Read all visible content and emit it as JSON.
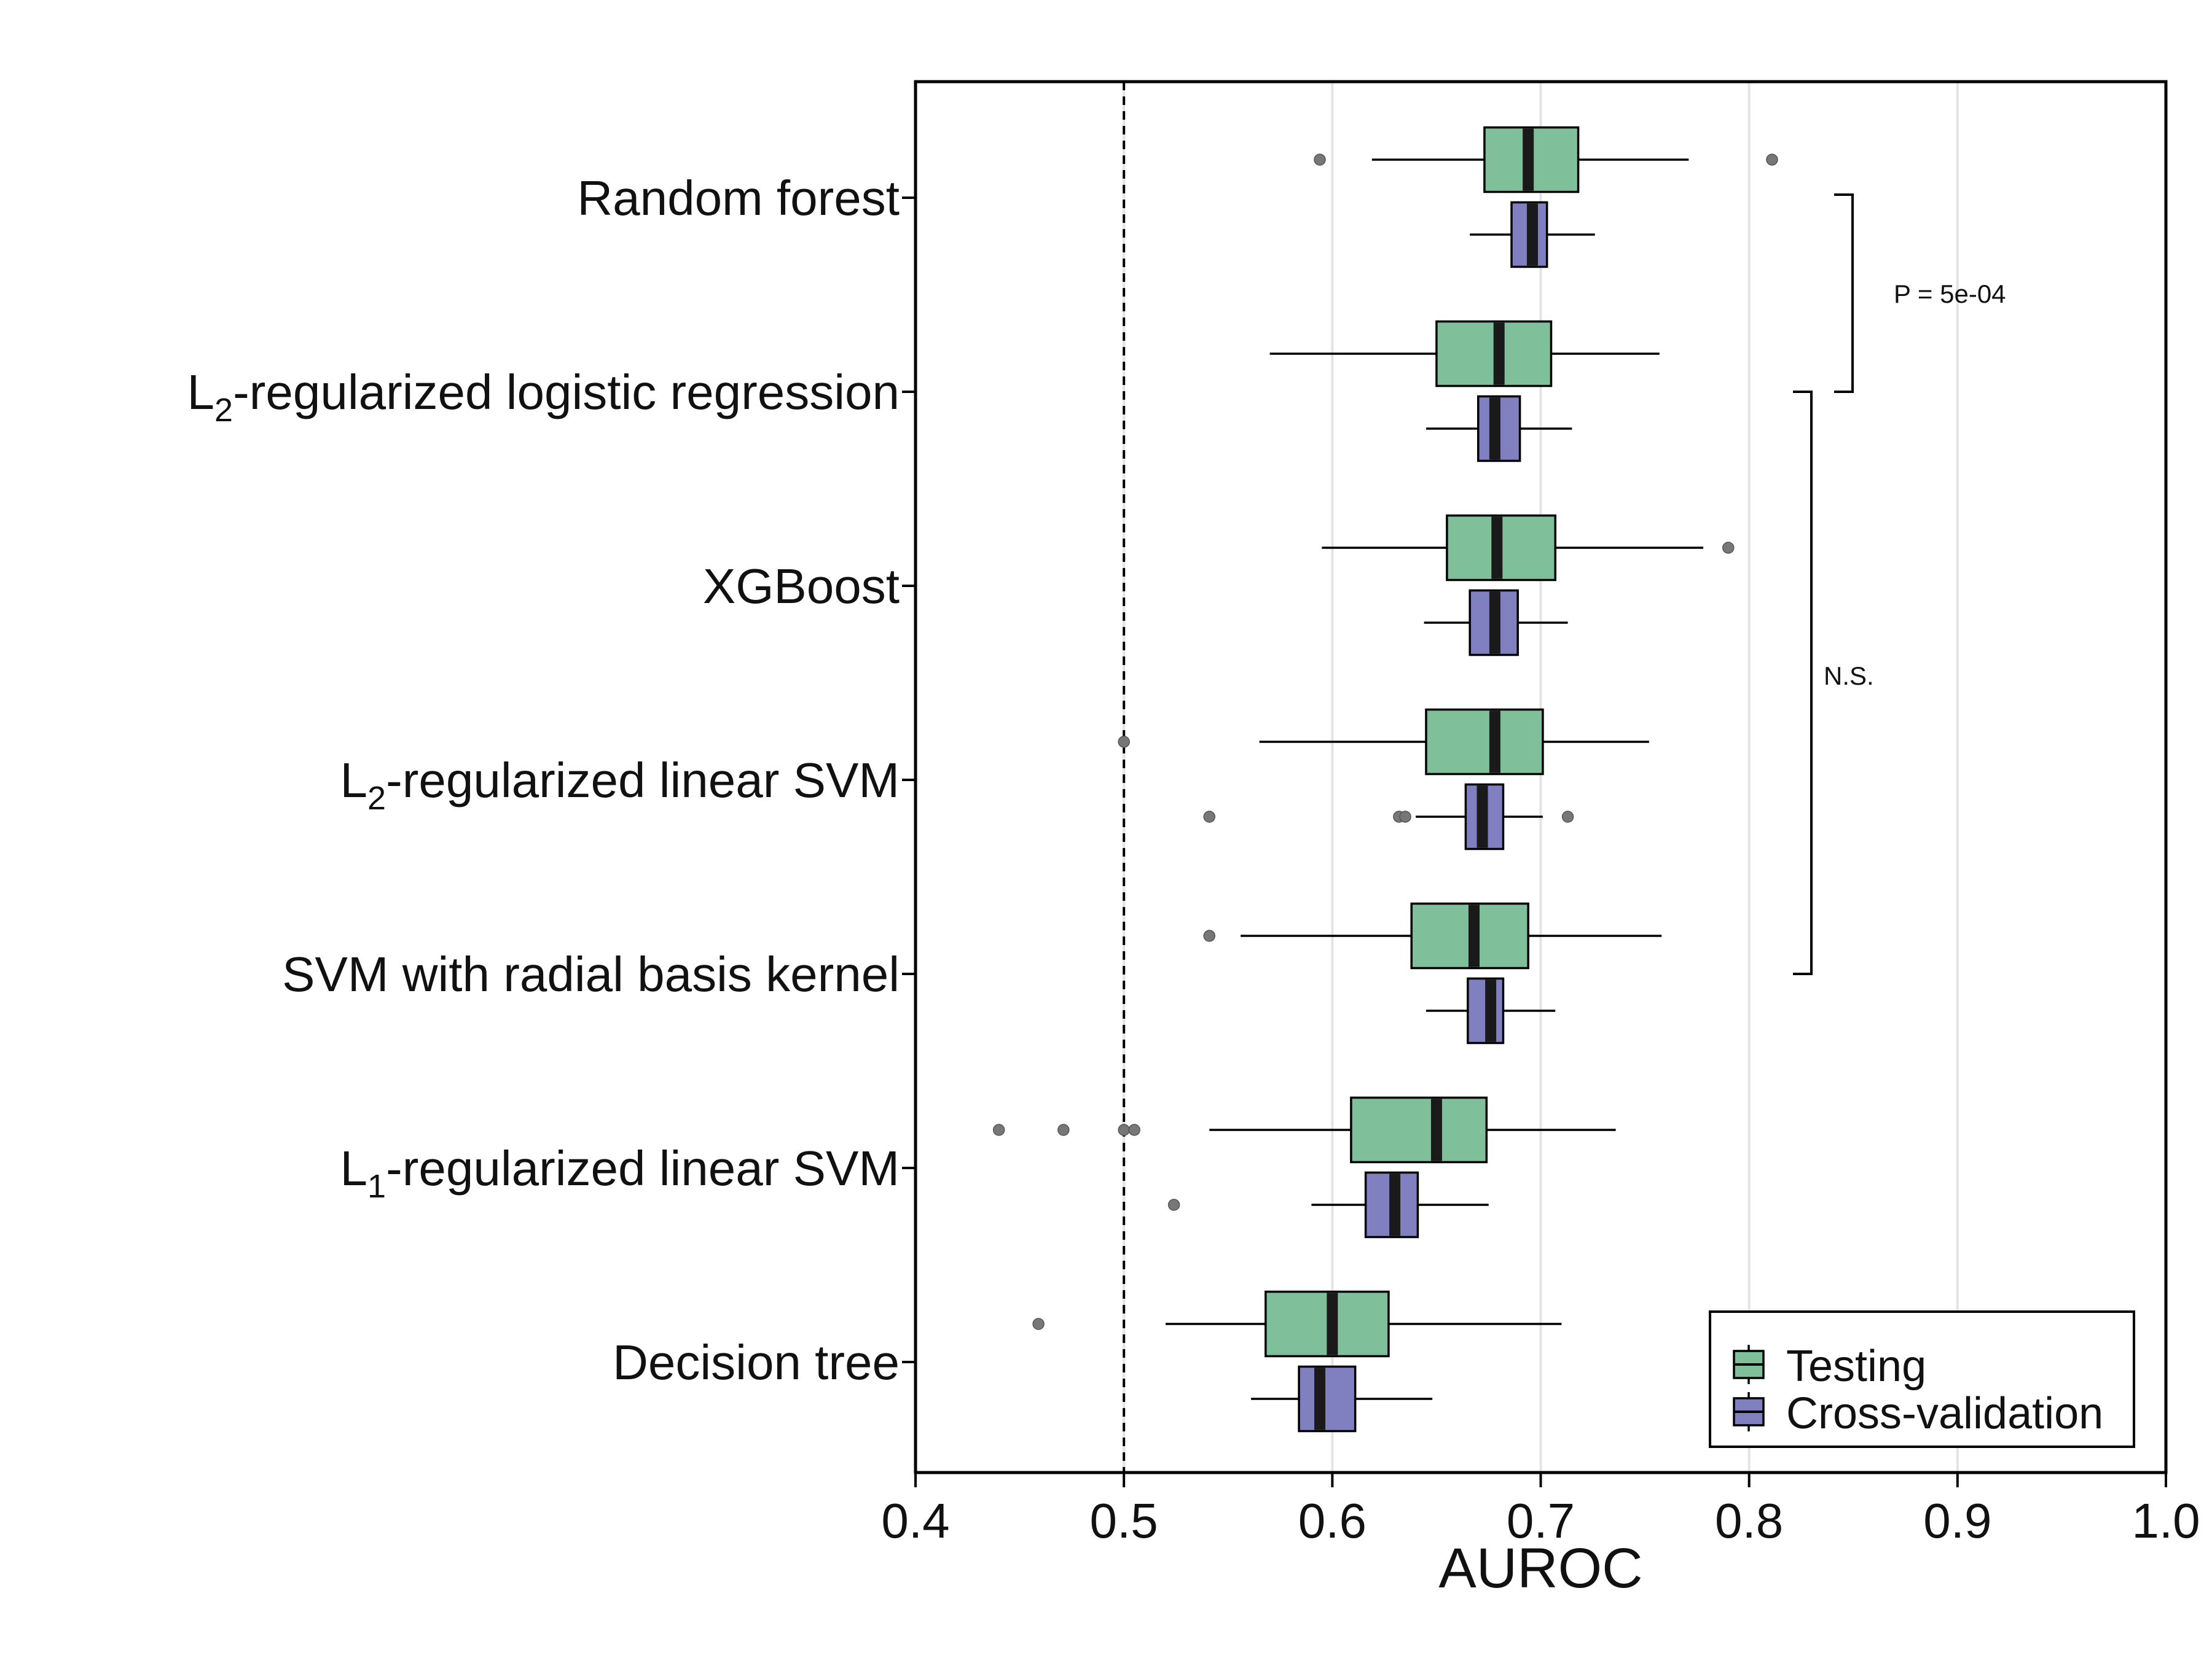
{
  "chart_data": {
    "type": "box",
    "xlabel": "AUROC",
    "xlim": [
      0.4,
      1.0
    ],
    "xticks": [
      "0.4",
      "0.5",
      "0.6",
      "0.7",
      "0.8",
      "0.9",
      "1.0"
    ],
    "grid": "vertical",
    "reference_line": {
      "x": 0.5,
      "style": "dashed"
    },
    "legend": {
      "placement": "bottom-right",
      "entries": [
        {
          "name": "Testing",
          "color": "#7fbf99"
        },
        {
          "name": "Cross-validation",
          "color": "#8080c0"
        }
      ]
    },
    "models": [
      {
        "label": "Random forest",
        "label_parts": [
          [
            "Random forest",
            ""
          ]
        ],
        "testing": {
          "whisker_low": 0.619,
          "q1": 0.673,
          "median": 0.694,
          "q3": 0.718,
          "whisker_high": 0.771,
          "outliers": [
            0.594,
            0.811
          ]
        },
        "cv": {
          "whisker_low": 0.666,
          "q1": 0.686,
          "median": 0.696,
          "q3": 0.703,
          "whisker_high": 0.726,
          "outliers": []
        }
      },
      {
        "label": "L2-regularized logistic regression",
        "label_parts": [
          [
            "L",
            ""
          ],
          [
            "2",
            "sub"
          ],
          [
            "-regularized logistic regression",
            ""
          ]
        ],
        "testing": {
          "whisker_low": 0.57,
          "q1": 0.65,
          "median": 0.68,
          "q3": 0.705,
          "whisker_high": 0.757,
          "outliers": []
        },
        "cv": {
          "whisker_low": 0.645,
          "q1": 0.67,
          "median": 0.678,
          "q3": 0.69,
          "whisker_high": 0.715,
          "outliers": []
        }
      },
      {
        "label": "XGBoost",
        "label_parts": [
          [
            "XGBoost",
            ""
          ]
        ],
        "testing": {
          "whisker_low": 0.595,
          "q1": 0.655,
          "median": 0.679,
          "q3": 0.707,
          "whisker_high": 0.778,
          "outliers": [
            0.79
          ]
        },
        "cv": {
          "whisker_low": 0.644,
          "q1": 0.666,
          "median": 0.678,
          "q3": 0.689,
          "whisker_high": 0.713,
          "outliers": []
        }
      },
      {
        "label": "L2-regularized linear SVM",
        "label_parts": [
          [
            "L",
            ""
          ],
          [
            "2",
            "sub"
          ],
          [
            "-regularized linear SVM",
            ""
          ]
        ],
        "testing": {
          "whisker_low": 0.565,
          "q1": 0.645,
          "median": 0.678,
          "q3": 0.701,
          "whisker_high": 0.752,
          "outliers": [
            0.5
          ]
        },
        "cv": {
          "whisker_low": 0.64,
          "q1": 0.664,
          "median": 0.672,
          "q3": 0.682,
          "whisker_high": 0.701,
          "outliers": [
            0.541,
            0.632,
            0.635,
            0.713
          ]
        }
      },
      {
        "label": "SVM with radial basis kernel",
        "label_parts": [
          [
            "SVM with radial basis kernel",
            ""
          ]
        ],
        "testing": {
          "whisker_low": 0.556,
          "q1": 0.638,
          "median": 0.668,
          "q3": 0.694,
          "whisker_high": 0.758,
          "outliers": [
            0.541
          ]
        },
        "cv": {
          "whisker_low": 0.645,
          "q1": 0.665,
          "median": 0.676,
          "q3": 0.682,
          "whisker_high": 0.707,
          "outliers": []
        }
      },
      {
        "label": "L1-regularized linear SVM",
        "label_parts": [
          [
            "L",
            ""
          ],
          [
            "1",
            "sub"
          ],
          [
            "-regularized linear SVM",
            ""
          ]
        ],
        "testing": {
          "whisker_low": 0.541,
          "q1": 0.609,
          "median": 0.65,
          "q3": 0.674,
          "whisker_high": 0.736,
          "outliers": [
            0.44,
            0.471,
            0.5,
            0.505
          ]
        },
        "cv": {
          "whisker_low": 0.59,
          "q1": 0.616,
          "median": 0.63,
          "q3": 0.641,
          "whisker_high": 0.675,
          "outliers": [
            0.524
          ]
        }
      },
      {
        "label": "Decision tree",
        "label_parts": [
          [
            "Decision tree",
            ""
          ]
        ],
        "testing": {
          "whisker_low": 0.52,
          "q1": 0.568,
          "median": 0.6,
          "q3": 0.627,
          "whisker_high": 0.71,
          "outliers": [
            0.459
          ]
        },
        "cv": {
          "whisker_low": 0.561,
          "q1": 0.584,
          "median": 0.594,
          "q3": 0.611,
          "whisker_high": 0.648,
          "outliers": []
        }
      }
    ],
    "annotations": [
      {
        "text": "P = 5e-04",
        "from": "Random forest",
        "to": "L2-regularized logistic regression"
      },
      {
        "text": "N.S.",
        "from": "L2-regularized logistic regression",
        "to": "SVM with radial basis kernel"
      }
    ]
  }
}
